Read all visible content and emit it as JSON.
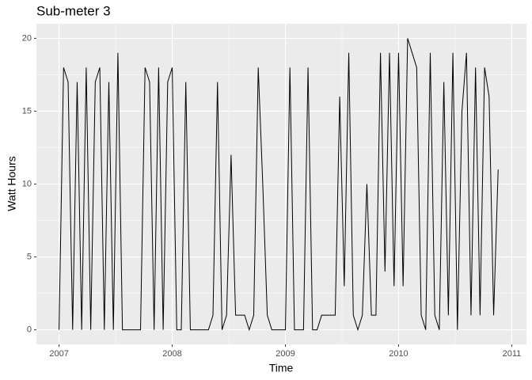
{
  "chart_data": {
    "type": "line",
    "title": "Sub-meter 3",
    "x_label": "Time",
    "y_label": "Watt Hours",
    "x": [
      2007,
      2007.04,
      2007.08,
      2007.12,
      2007.16,
      2007.2,
      2007.24,
      2007.28,
      2007.32,
      2007.36,
      2007.4,
      2007.44,
      2007.48,
      2007.52,
      2007.56,
      2007.6,
      2007.64,
      2007.68,
      2007.72,
      2007.76,
      2007.8,
      2007.84,
      2007.88,
      2007.92,
      2007.96,
      2008,
      2008.04,
      2008.08,
      2008.12,
      2008.16,
      2008.2,
      2008.24,
      2008.28,
      2008.32,
      2008.36,
      2008.4,
      2008.44,
      2008.48,
      2008.52,
      2008.56,
      2008.6,
      2008.64,
      2008.68,
      2008.72,
      2008.76,
      2008.8,
      2008.84,
      2008.88,
      2008.92,
      2008.96,
      2009,
      2009.04,
      2009.08,
      2009.12,
      2009.16,
      2009.2,
      2009.24,
      2009.28,
      2009.32,
      2009.36,
      2009.4,
      2009.44,
      2009.48,
      2009.52,
      2009.56,
      2009.6,
      2009.64,
      2009.68,
      2009.72,
      2009.76,
      2009.8,
      2009.84,
      2009.88,
      2009.92,
      2009.96,
      2010,
      2010.04,
      2010.08,
      2010.12,
      2010.16,
      2010.2,
      2010.24,
      2010.28,
      2010.32,
      2010.36,
      2010.4,
      2010.44,
      2010.48,
      2010.52,
      2010.56,
      2010.6,
      2010.64,
      2010.68,
      2010.72,
      2010.76,
      2010.8,
      2010.84,
      2010.88
    ],
    "values": [
      0,
      18,
      17,
      0,
      17,
      0,
      18,
      0,
      17,
      18,
      0,
      17,
      0,
      19,
      0,
      0,
      0,
      0,
      0,
      18,
      17,
      0,
      18,
      0,
      17,
      18,
      0,
      0,
      17,
      0,
      0,
      0,
      0,
      0,
      1,
      17,
      0,
      1,
      12,
      1,
      1,
      1,
      0,
      1,
      18,
      10,
      1,
      0,
      0,
      0,
      0,
      18,
      0,
      0,
      0,
      18,
      0,
      0,
      1,
      1,
      1,
      1,
      16,
      3,
      19,
      1,
      0,
      1,
      10,
      1,
      1,
      19,
      4,
      19,
      3,
      19,
      3,
      20,
      19,
      18,
      1,
      0,
      19,
      1,
      0,
      17,
      1,
      19,
      0,
      15,
      19,
      1,
      18,
      1,
      18,
      16,
      1,
      11
    ],
    "color": "#000000",
    "xlim": [
      2006.8,
      2011.13
    ],
    "ylim": [
      -1,
      21
    ],
    "xticks": [
      2007,
      2008,
      2009,
      2010,
      2011
    ],
    "yticks": [
      0,
      5,
      10,
      15,
      20
    ],
    "x_minor_grid": [
      2007.5,
      2008.5,
      2009.5,
      2010.5
    ],
    "y_minor_grid": [
      2.5,
      7.5,
      12.5,
      17.5
    ],
    "grid": true
  }
}
